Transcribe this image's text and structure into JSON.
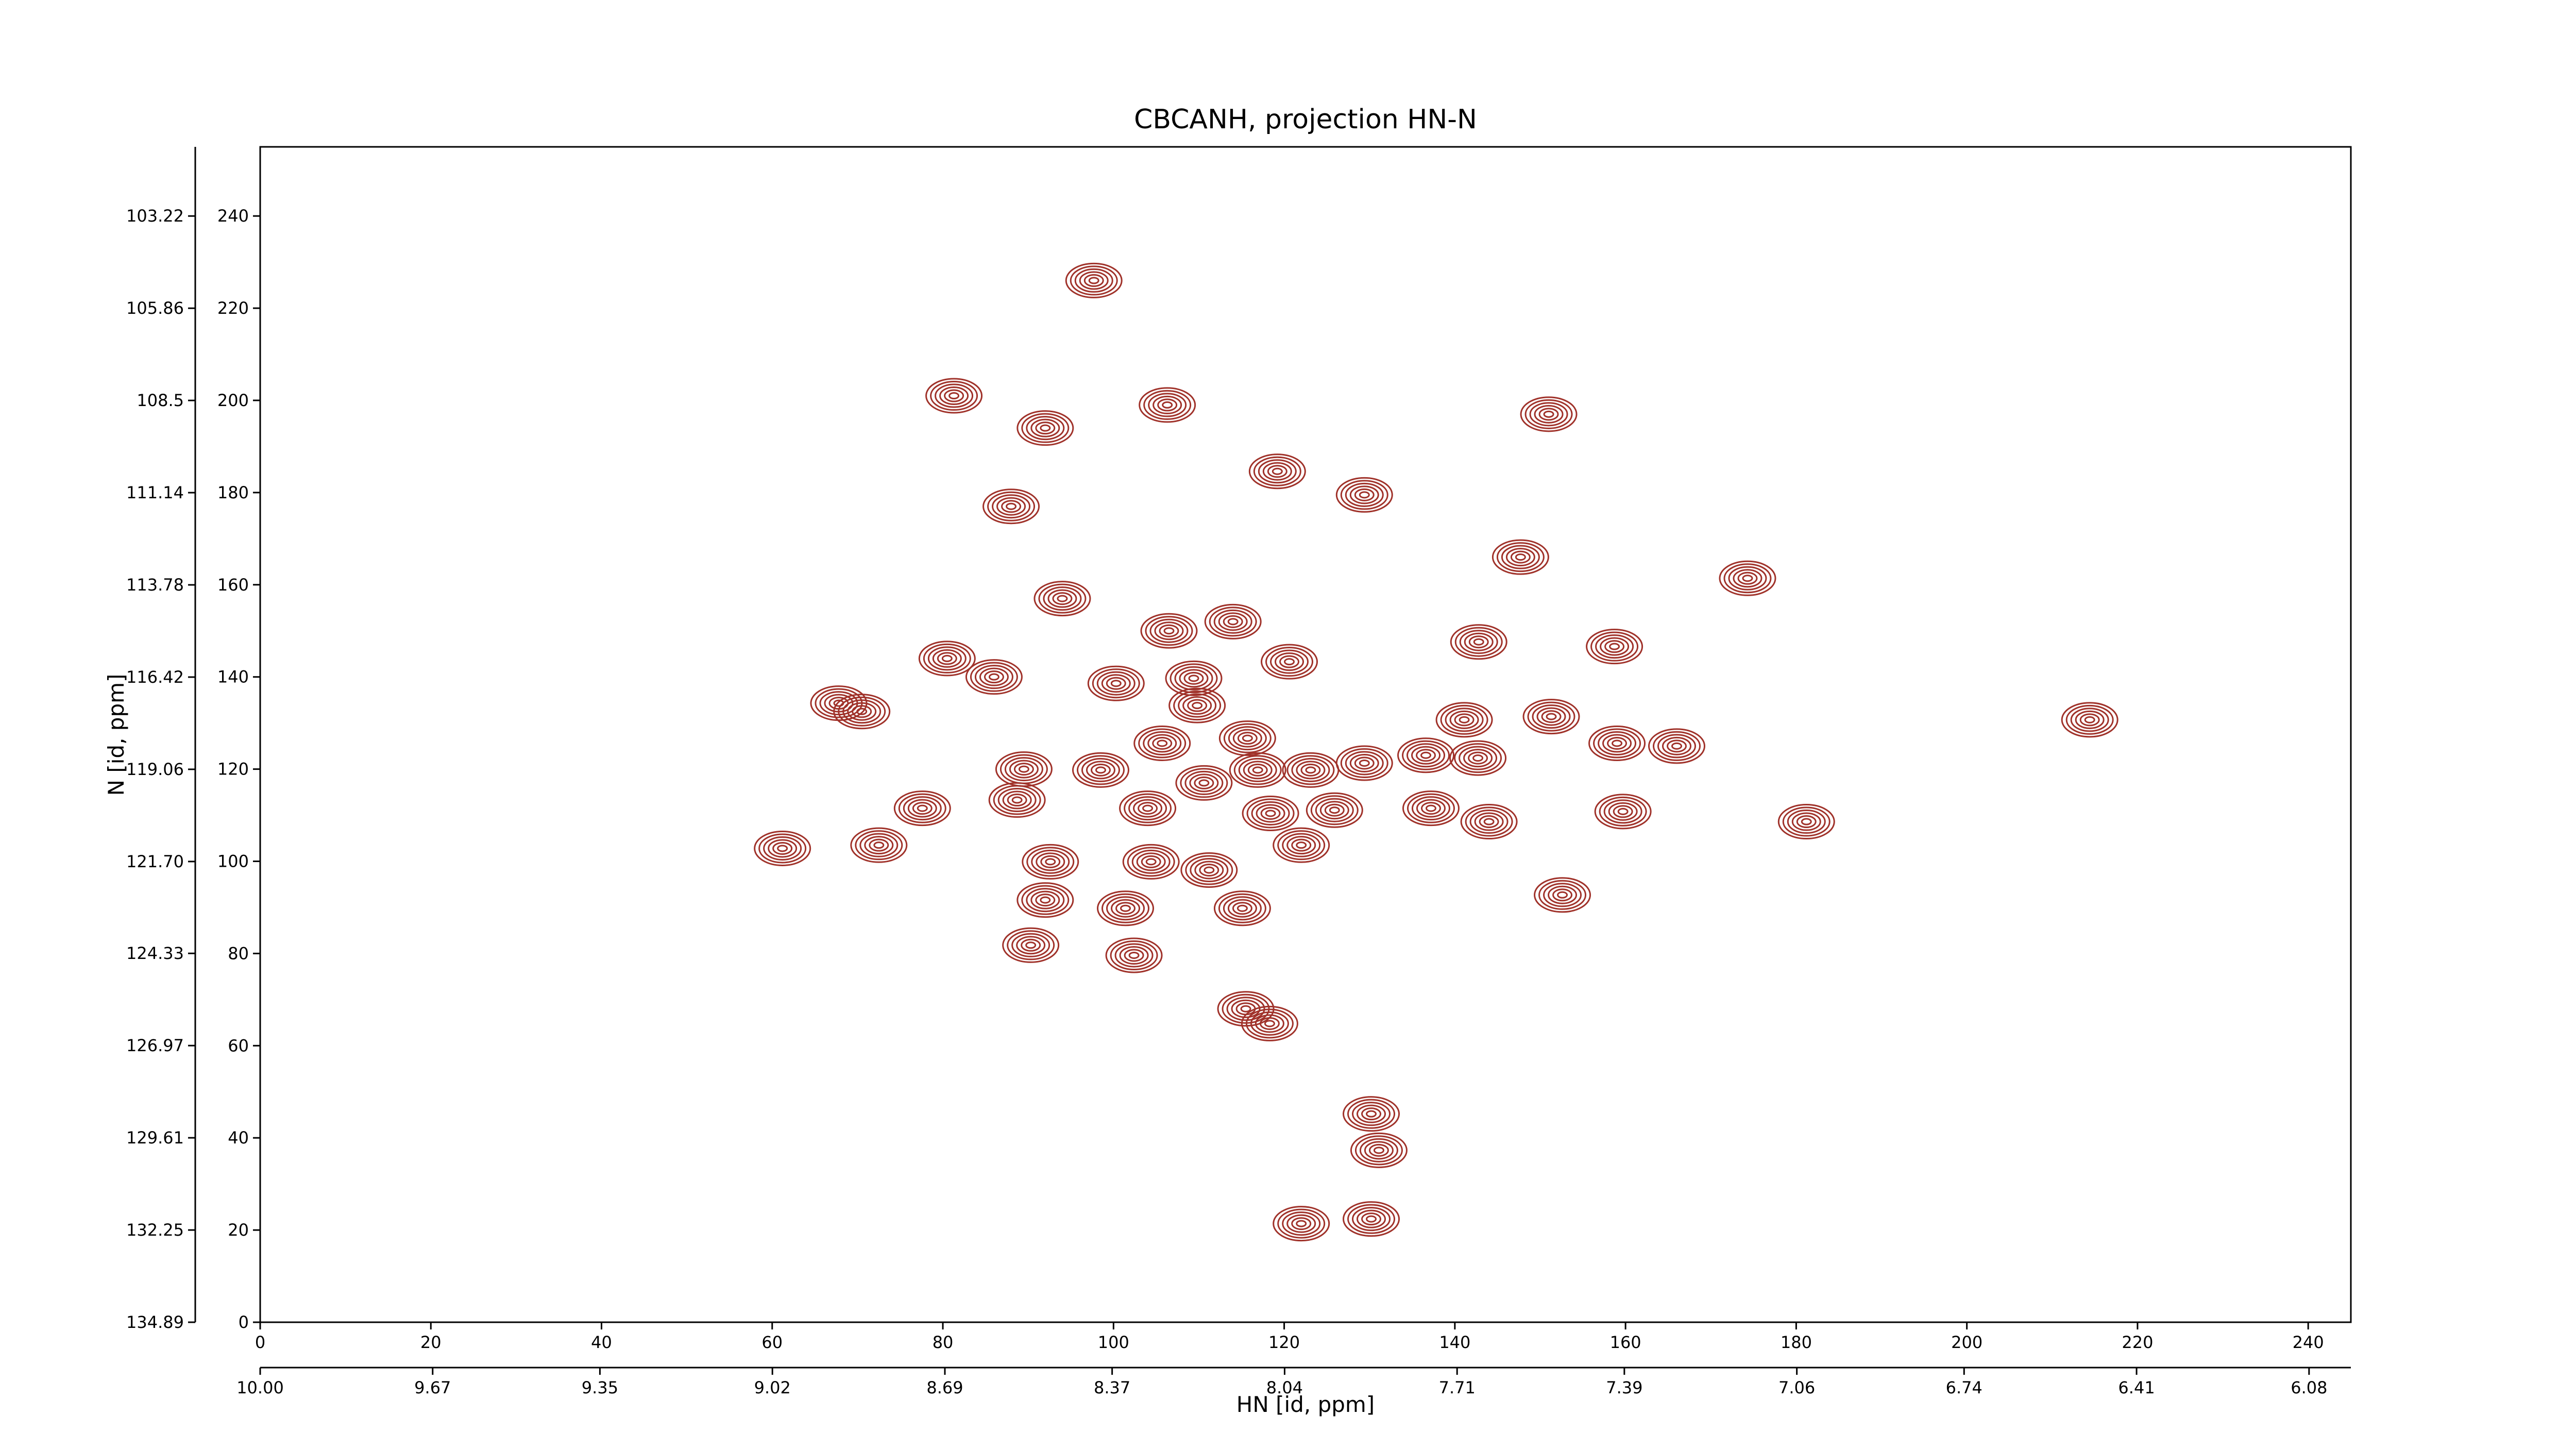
{
  "chart_data": {
    "type": "contour",
    "title": "CBCANH, projection HN-N",
    "x_label": "HN [id, ppm]",
    "y_label": "N [id, ppm]",
    "color": "#a0322a",
    "xlim": [
      0,
      245
    ],
    "xticks": [
      0,
      20,
      40,
      60,
      80,
      100,
      120,
      140,
      160,
      180,
      200,
      220,
      240
    ],
    "ylim": [
      0,
      255
    ],
    "yticks": [
      0,
      20,
      40,
      60,
      80,
      100,
      120,
      140,
      160,
      180,
      200,
      220,
      240
    ],
    "x2lim": [
      10.0,
      6.0
    ],
    "x2ticks": [
      {
        "value": 10,
        "label": "10.00"
      },
      9.67,
      9.35,
      9.02,
      8.69,
      8.37,
      8.04,
      7.71,
      7.39,
      7.06,
      6.74,
      6.41,
      6.08
    ],
    "y2lim": [
      134.89,
      101.24
    ],
    "y2ticks": [
      134.89,
      132.25,
      129.61,
      126.97,
      124.33,
      {
        "value": 121.7,
        "label": "121.70"
      },
      119.06,
      116.42,
      113.78,
      111.14,
      108.5,
      105.86,
      103.22
    ],
    "x": [
      97.7,
      81.3,
      92,
      106.3,
      119.2,
      129.4,
      151,
      88,
      147.7,
      174.3,
      94,
      106.5,
      114,
      142.8,
      158.7,
      80.5,
      86,
      100.3,
      109.4,
      120.6,
      67.8,
      70.5,
      109.8,
      141.1,
      151.3,
      166,
      214.4,
      105.7,
      115.7,
      89.5,
      98.5,
      110.6,
      116.9,
      123.1,
      129.4,
      136.6,
      142.7,
      159,
      77.6,
      88.7,
      104,
      118.4,
      125.9,
      137.2,
      144,
      159.7,
      181.2,
      61.2,
      72.5,
      92.6,
      104.4,
      111.2,
      122,
      92,
      101.4,
      115.1,
      152.6,
      90.3,
      102.4,
      115.5,
      118.3,
      130.2,
      131.1,
      122,
      130.2
    ],
    "y": [
      226,
      201,
      194,
      199,
      184.6,
      179.5,
      197,
      177,
      166,
      161.4,
      157,
      150,
      152,
      147.6,
      146.6,
      144,
      140,
      138.6,
      139.7,
      143.3,
      134.3,
      132.5,
      133.8,
      130.7,
      131.4,
      125,
      130.7,
      125.6,
      126.7,
      120,
      119.8,
      117,
      119.8,
      119.8,
      121.3,
      123,
      122.4,
      125.6,
      111.5,
      113.3,
      111.5,
      110.4,
      111.1,
      111.5,
      108.6,
      110.8,
      108.6,
      102.8,
      103.5,
      99.9,
      99.9,
      98.1,
      103.5,
      91.6,
      89.8,
      89.8,
      92.7,
      81.8,
      79.6,
      68,
      64.8,
      45.2,
      37.3,
      21.4,
      22.4
    ]
  }
}
